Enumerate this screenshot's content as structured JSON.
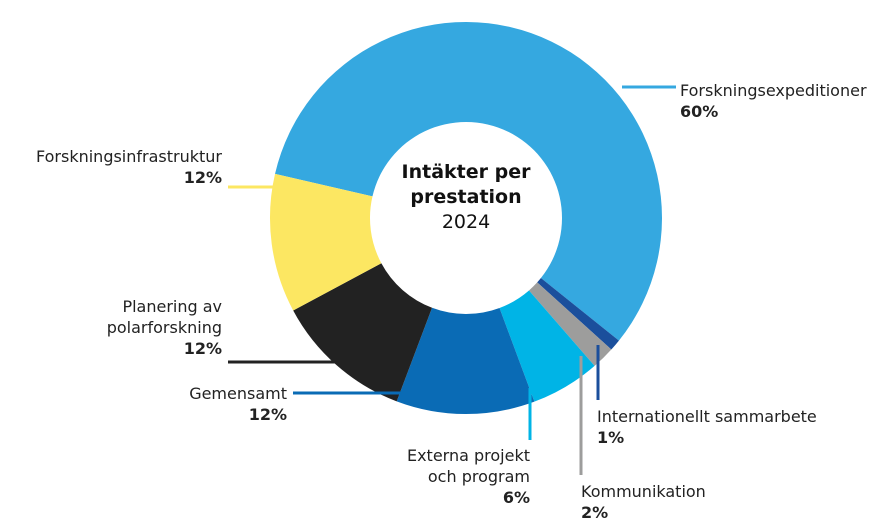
{
  "chart_data": {
    "type": "donut",
    "title": "Intäkter per prestation",
    "subtitle": "2024",
    "categories": [
      "Forskningsexpeditioner",
      "Internationellt sammarbete",
      "Kommunikation",
      "Externa projekt och program",
      "Gemensamt",
      "Planering av polarforskning",
      "Forskningsinfrastruktur"
    ],
    "values": [
      60,
      1,
      2,
      6,
      12,
      12,
      12
    ],
    "value_labels": [
      "60%",
      "1%",
      "2%",
      "6%",
      "12%",
      "12%",
      "12%"
    ],
    "colors": [
      "#35a8e0",
      "#1b4f9c",
      "#9d9d9c",
      "#00b4e6",
      "#0a6bb5",
      "#222222",
      "#fce762"
    ]
  }
}
